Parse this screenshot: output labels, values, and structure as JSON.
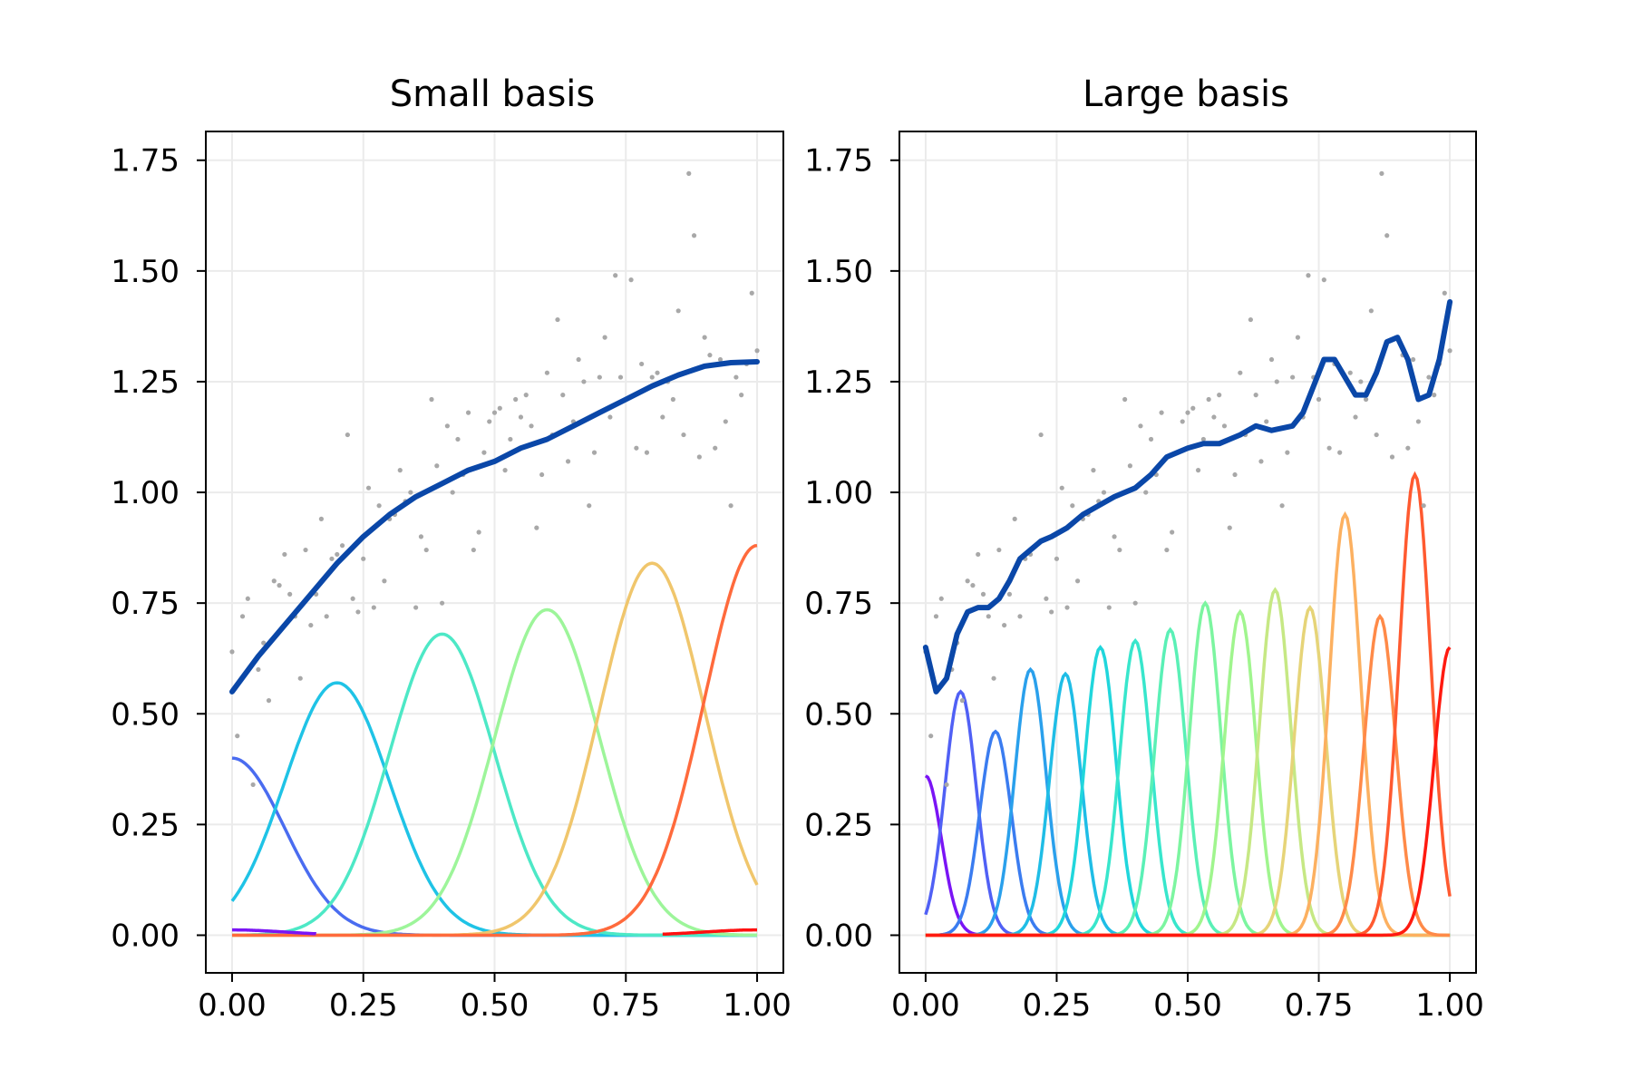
{
  "chart_data": [
    {
      "type": "line",
      "title": "Small basis",
      "xlabel": "",
      "ylabel": "",
      "xlim": [
        -0.05,
        1.05
      ],
      "ylim": [
        -0.085,
        1.815
      ],
      "xticks": [
        "0.00",
        "0.25",
        "0.50",
        "0.75",
        "1.00"
      ],
      "yticks": [
        "0.00",
        "0.25",
        "0.50",
        "0.75",
        "1.00",
        "1.25",
        "1.50",
        "1.75"
      ],
      "grid": true,
      "legend": "none",
      "scatter_color": "#a8a8a8",
      "fit_color": "#0a47a8",
      "basis": [
        {
          "center": 0.0,
          "amplitude": 0.4,
          "color": "#4a6cf0"
        },
        {
          "center": 0.2,
          "amplitude": 0.57,
          "color": "#1fc3e6"
        },
        {
          "center": 0.4,
          "amplitude": 0.68,
          "color": "#4de8c6"
        },
        {
          "center": 0.6,
          "amplitude": 0.735,
          "color": "#9df59a"
        },
        {
          "center": 0.8,
          "amplitude": 0.84,
          "color": "#f0c66c"
        },
        {
          "center": 1.0,
          "amplitude": 0.88,
          "color": "#ff6a3c"
        },
        {
          "center": -0.2,
          "amplitude": 0.0,
          "color": "#7a14f5",
          "clip": [
            0.0,
            0.16
          ]
        },
        {
          "center": 1.2,
          "amplitude": 0.0,
          "color": "#ff1010",
          "clip": [
            0.82,
            1.0
          ]
        }
      ],
      "basis_width": 0.1,
      "fit": {
        "x": [
          0.0,
          0.05,
          0.1,
          0.15,
          0.2,
          0.25,
          0.3,
          0.35,
          0.4,
          0.45,
          0.5,
          0.55,
          0.6,
          0.65,
          0.7,
          0.75,
          0.8,
          0.85,
          0.9,
          0.95,
          1.0
        ],
        "y": [
          0.55,
          0.63,
          0.7,
          0.77,
          0.84,
          0.9,
          0.95,
          0.99,
          1.02,
          1.05,
          1.07,
          1.1,
          1.12,
          1.15,
          1.18,
          1.21,
          1.24,
          1.265,
          1.285,
          1.293,
          1.295
        ]
      }
    },
    {
      "type": "line",
      "title": "Large basis",
      "xlabel": "",
      "ylabel": "",
      "xlim": [
        -0.05,
        1.05
      ],
      "ylim": [
        -0.085,
        1.815
      ],
      "xticks": [
        "0.00",
        "0.25",
        "0.50",
        "0.75",
        "1.00"
      ],
      "yticks": [
        "0.00",
        "0.25",
        "0.50",
        "0.75",
        "1.00",
        "1.25",
        "1.50",
        "1.75"
      ],
      "grid": true,
      "legend": "none",
      "scatter_color": "#a8a8a8",
      "fit_color": "#0a47a8",
      "basis": [
        {
          "center": 0.0,
          "amplitude": 0.36,
          "color": "#7a14f5"
        },
        {
          "center": 0.0667,
          "amplitude": 0.55,
          "color": "#5060f5"
        },
        {
          "center": 0.1333,
          "amplitude": 0.46,
          "color": "#3a7cf0"
        },
        {
          "center": 0.2,
          "amplitude": 0.6,
          "color": "#2aa0ec"
        },
        {
          "center": 0.2667,
          "amplitude": 0.59,
          "color": "#1fbde6"
        },
        {
          "center": 0.3333,
          "amplitude": 0.65,
          "color": "#20d6dc"
        },
        {
          "center": 0.4,
          "amplitude": 0.665,
          "color": "#38e6cc"
        },
        {
          "center": 0.4667,
          "amplitude": 0.69,
          "color": "#5af0b6"
        },
        {
          "center": 0.5333,
          "amplitude": 0.75,
          "color": "#7cf5a0"
        },
        {
          "center": 0.6,
          "amplitude": 0.73,
          "color": "#a0f58e"
        },
        {
          "center": 0.6667,
          "amplitude": 0.78,
          "color": "#c6e884"
        },
        {
          "center": 0.7333,
          "amplitude": 0.74,
          "color": "#e6d478"
        },
        {
          "center": 0.8,
          "amplitude": 0.95,
          "color": "#fcb060"
        },
        {
          "center": 0.8667,
          "amplitude": 0.72,
          "color": "#ff8a48"
        },
        {
          "center": 0.9333,
          "amplitude": 1.04,
          "color": "#ff5a30"
        },
        {
          "center": 1.0,
          "amplitude": 0.65,
          "color": "#ff1a10"
        }
      ],
      "basis_width": 0.03,
      "fit": {
        "x": [
          0.0,
          0.02,
          0.04,
          0.06,
          0.08,
          0.1,
          0.12,
          0.14,
          0.16,
          0.18,
          0.2,
          0.22,
          0.24,
          0.27,
          0.3,
          0.33,
          0.36,
          0.4,
          0.43,
          0.46,
          0.5,
          0.53,
          0.56,
          0.6,
          0.63,
          0.66,
          0.7,
          0.72,
          0.74,
          0.76,
          0.78,
          0.8,
          0.82,
          0.84,
          0.86,
          0.88,
          0.9,
          0.92,
          0.94,
          0.96,
          0.98,
          1.0
        ],
        "y": [
          0.65,
          0.55,
          0.58,
          0.68,
          0.73,
          0.74,
          0.74,
          0.76,
          0.8,
          0.85,
          0.87,
          0.89,
          0.9,
          0.92,
          0.95,
          0.97,
          0.99,
          1.01,
          1.04,
          1.08,
          1.1,
          1.11,
          1.11,
          1.13,
          1.15,
          1.14,
          1.15,
          1.18,
          1.24,
          1.3,
          1.3,
          1.26,
          1.22,
          1.22,
          1.27,
          1.34,
          1.35,
          1.3,
          1.21,
          1.22,
          1.3,
          1.43
        ]
      }
    }
  ],
  "scatter_points": {
    "x": [
      0.0,
      0.01,
      0.02,
      0.03,
      0.04,
      0.05,
      0.06,
      0.07,
      0.08,
      0.09,
      0.1,
      0.11,
      0.12,
      0.13,
      0.14,
      0.15,
      0.16,
      0.17,
      0.18,
      0.19,
      0.2,
      0.21,
      0.22,
      0.23,
      0.24,
      0.25,
      0.26,
      0.27,
      0.28,
      0.29,
      0.3,
      0.31,
      0.32,
      0.33,
      0.34,
      0.35,
      0.36,
      0.37,
      0.38,
      0.39,
      0.4,
      0.41,
      0.42,
      0.43,
      0.44,
      0.45,
      0.46,
      0.47,
      0.48,
      0.49,
      0.5,
      0.51,
      0.52,
      0.53,
      0.54,
      0.55,
      0.56,
      0.57,
      0.58,
      0.59,
      0.6,
      0.61,
      0.62,
      0.63,
      0.64,
      0.65,
      0.66,
      0.67,
      0.68,
      0.69,
      0.7,
      0.71,
      0.72,
      0.73,
      0.74,
      0.75,
      0.76,
      0.77,
      0.78,
      0.79,
      0.8,
      0.81,
      0.82,
      0.83,
      0.84,
      0.85,
      0.86,
      0.87,
      0.88,
      0.89,
      0.9,
      0.91,
      0.92,
      0.93,
      0.94,
      0.95,
      0.96,
      0.97,
      0.98,
      0.99,
      1.0
    ],
    "y": [
      0.64,
      0.45,
      0.72,
      0.76,
      0.34,
      0.6,
      0.66,
      0.53,
      0.8,
      0.79,
      0.86,
      0.77,
      0.72,
      0.58,
      0.87,
      0.7,
      0.77,
      0.94,
      0.72,
      0.85,
      0.86,
      0.88,
      1.13,
      0.76,
      0.73,
      0.85,
      1.01,
      0.74,
      0.97,
      0.8,
      0.94,
      0.95,
      1.05,
      0.98,
      1.0,
      0.74,
      0.9,
      0.87,
      1.21,
      1.06,
      0.75,
      1.15,
      1.0,
      1.12,
      1.04,
      1.18,
      0.87,
      0.91,
      1.09,
      1.16,
      1.18,
      1.19,
      1.05,
      1.12,
      1.21,
      1.17,
      1.22,
      1.15,
      0.92,
      1.04,
      1.27,
      1.13,
      1.39,
      1.22,
      1.07,
      1.16,
      1.3,
      1.25,
      0.97,
      1.09,
      1.26,
      1.35,
      1.17,
      1.49,
      1.26,
      1.21,
      1.48,
      1.1,
      1.29,
      1.09,
      1.26,
      1.27,
      1.17,
      1.25,
      1.21,
      1.41,
      1.13,
      1.72,
      1.58,
      1.08,
      1.35,
      1.31,
      1.1,
      1.3,
      1.16,
      0.97,
      1.26,
      1.22,
      1.29,
      1.45,
      1.32
    ]
  }
}
